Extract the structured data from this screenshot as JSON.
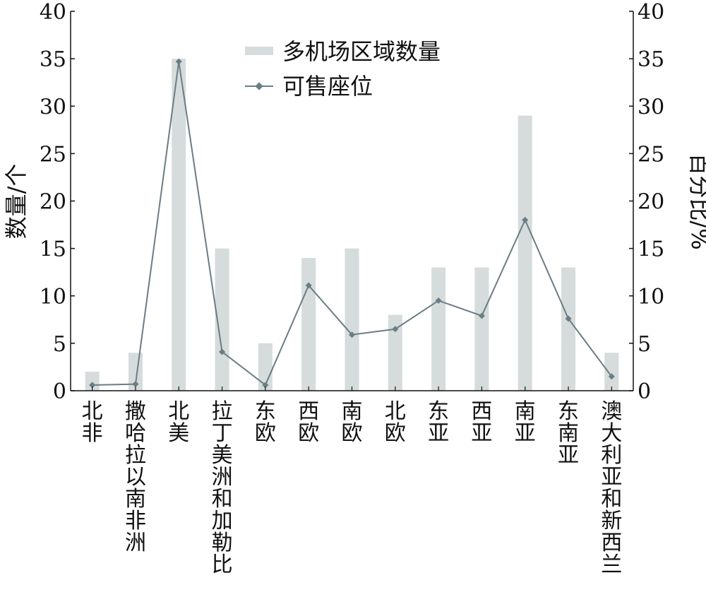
{
  "chart_data": {
    "type": "bar",
    "categories": [
      "北非",
      "撒哈拉以南非洲",
      "北美",
      "拉丁美洲和加勒比",
      "东欧",
      "西欧",
      "南欧",
      "北欧",
      "东亚",
      "西亚",
      "南亚",
      "东南亚",
      "澳大利亚和新西兰"
    ],
    "series": [
      {
        "name": "多机场区域数量",
        "kind": "bar",
        "axis": "left",
        "color": "#d5dcdb",
        "values": [
          2,
          4,
          35,
          15,
          5,
          14,
          15,
          8,
          13,
          13,
          29,
          13,
          4
        ]
      },
      {
        "name": "可售座位",
        "kind": "line",
        "axis": "right",
        "color": "#6b7d84",
        "values": [
          0.6,
          0.7,
          34.7,
          4.1,
          0.6,
          11.1,
          5.9,
          6.5,
          9.5,
          7.9,
          18.0,
          7.6,
          1.5
        ]
      }
    ],
    "ylabel": "数量/个",
    "y2label": "百分比/%",
    "ylim": [
      0,
      40
    ],
    "y2lim": [
      0,
      40
    ],
    "yticks": [
      "0",
      "5",
      "10",
      "15",
      "20",
      "25",
      "30",
      "35",
      "40"
    ],
    "legend_position": "top-center",
    "grid": false
  }
}
